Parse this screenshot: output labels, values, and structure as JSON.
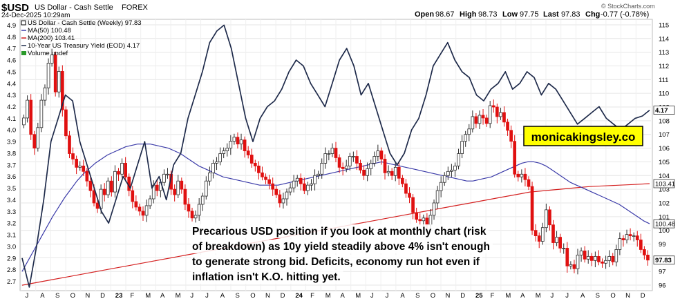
{
  "header": {
    "symbol": "$USD",
    "name": "US Dollar - Cash Settle",
    "exchange": "FOREX",
    "date": "24-Dec-2025 10:29am",
    "open_label": "Open",
    "open": "98.67",
    "high_label": "High",
    "high": "98.73",
    "low_label": "Low",
    "low": "97.75",
    "last_label": "Last",
    "last": "97.83",
    "chg_label": "Chg",
    "chg": "-0.77 (-0.78%)",
    "copyright": "© StockCharts.com"
  },
  "legend": [
    {
      "text": "US Dollar - Cash Settle (Weekly) 97.83",
      "color": "#000000"
    },
    {
      "text": "MA(50) 100.48",
      "color": "#3a3aa8"
    },
    {
      "text": "MA(200) 103.41",
      "color": "#d42020"
    },
    {
      "text": "10-Year US Treasury Yield (EOD) 4.17",
      "color": "#1e2a4a"
    },
    {
      "text": "Volume undef",
      "color": "#2a9a2a"
    }
  ],
  "watermark": "monicakingsley.co",
  "annotation": "Precarious USD position if you look at monthly chart (risk of breakdown) as 10y yield steadily above 4% isn't enough to generate strong bid. Deficits, economy run hot even if inflation isn't K.O. hitting yet.",
  "colors": {
    "up": "#2a2a2a",
    "down": "#e01010",
    "ma50": "#3a3aa8",
    "ma200": "#d42020",
    "yield": "#1e2a4a",
    "box_bg": "#ffff00"
  },
  "chart_data": {
    "type": "line",
    "x_labels": [
      "J",
      "A",
      "S",
      "O",
      "N",
      "D",
      "23",
      "F",
      "M",
      "A",
      "M",
      "J",
      "J",
      "A",
      "S",
      "O",
      "N",
      "D",
      "24",
      "F",
      "M",
      "A",
      "M",
      "J",
      "J",
      "A",
      "S",
      "O",
      "N",
      "D",
      "25",
      "F",
      "M",
      "A",
      "M",
      "J",
      "J",
      "A",
      "S",
      "O",
      "N",
      "D"
    ],
    "left_axis": {
      "ticks": [
        "2.7",
        "2.8",
        "2.9",
        "3.0",
        "3.1",
        "3.2",
        "3.3",
        "3.4",
        "3.5",
        "3.6",
        "3.7",
        "3.8",
        "3.9",
        "4.0",
        "4.1",
        "4.2",
        "4.3",
        "4.4",
        "4.5",
        "4.6",
        "4.7",
        "4.8",
        "4.9"
      ],
      "ylim": [
        2.62,
        4.95
      ]
    },
    "right_axis": {
      "ticks": [
        "96",
        "97",
        "98",
        "99",
        "100",
        "101",
        "102",
        "103",
        "104",
        "105",
        "106",
        "107",
        "108",
        "109",
        "110",
        "111",
        "112",
        "113",
        "114",
        "115"
      ],
      "ylim": [
        95.6,
        115.4
      ]
    },
    "tags": {
      "yield": "4.17",
      "ma200": "103.41",
      "ma50": "100.48",
      "last": "97.83"
    },
    "usd_close": [
      108.2,
      109.5,
      107.0,
      106.0,
      107.5,
      109.5,
      110.4,
      112.2,
      112.8,
      110.1,
      111.6,
      108.8,
      106.9,
      105.6,
      105.2,
      104.6,
      104.7,
      104.3,
      103.6,
      102.9,
      102.0,
      101.6,
      103.0,
      102.6,
      103.6,
      102.8,
      104.3,
      104.1,
      104.9,
      103.9,
      102.9,
      102.1,
      101.7,
      101.4,
      101.1,
      101.8,
      102.3,
      103.3,
      102.9,
      103.5,
      104.1,
      104.1,
      103.0,
      102.6,
      103.6,
      103.0,
      101.9,
      101.4,
      100.9,
      101.1,
      101.9,
      102.5,
      103.6,
      104.2,
      104.9,
      105.0,
      105.6,
      105.8,
      106.0,
      106.5,
      106.8,
      106.3,
      106.6,
      105.8,
      105.5,
      104.9,
      104.7,
      104.2,
      103.9,
      103.7,
      103.4,
      103.0,
      102.6,
      102.0,
      102.3,
      102.8,
      103.1,
      103.6,
      103.8,
      103.4,
      102.9,
      103.3,
      103.4,
      104.0,
      104.1,
      104.9,
      105.6,
      105.6,
      106.0,
      105.3,
      104.6,
      104.5,
      104.7,
      105.4,
      105.4,
      104.9,
      104.4,
      104.0,
      104.5,
      104.9,
      105.4,
      105.8,
      105.2,
      104.2,
      104.3,
      104.0,
      104.6,
      103.8,
      103.4,
      102.7,
      102.4,
      101.3,
      100.8,
      100.7,
      100.9,
      100.4,
      101.1,
      102.0,
      102.9,
      103.5,
      104.0,
      104.3,
      104.4,
      104.7,
      105.6,
      106.5,
      107.0,
      107.4,
      108.3,
      107.8,
      108.4,
      108.2,
      107.8,
      109.1,
      109.0,
      108.3,
      108.6,
      107.9,
      107.3,
      106.5,
      104.1,
      103.9,
      104.1,
      103.7,
      103.2,
      100.0,
      99.6,
      99.2,
      100.2,
      101.5,
      100.4,
      99.1,
      99.5,
      98.7,
      98.7,
      97.4,
      97.5,
      97.2,
      98.2,
      98.5,
      97.9,
      98.1,
      97.8,
      98.1,
      97.7,
      97.6,
      97.8,
      98.1,
      97.7,
      98.6,
      99.4,
      99.3,
      99.7,
      99.6,
      99.6,
      99.3,
      98.6,
      98.2,
      97.83
    ],
    "ma50": [
      97.0,
      97.8,
      98.6,
      99.4,
      100.2,
      101.0,
      101.7,
      102.4,
      103.0,
      103.6,
      104.1,
      104.5,
      104.9,
      105.2,
      105.5,
      105.7,
      105.9,
      106.1,
      106.2,
      106.3,
      106.3,
      106.3,
      106.2,
      106.1,
      106.0,
      105.8,
      105.6,
      105.3,
      105.0,
      104.7,
      104.5,
      104.3,
      104.1,
      103.9,
      103.8,
      103.7,
      103.6,
      103.5,
      103.4,
      103.3,
      103.3,
      103.3,
      103.3,
      103.4,
      103.5,
      103.6,
      103.7,
      103.8,
      103.9,
      104.0,
      104.1,
      104.2,
      104.3,
      104.4,
      104.5,
      104.6,
      104.7,
      104.8,
      104.9,
      105.0,
      104.9,
      104.8,
      104.7,
      104.6,
      104.5,
      104.4,
      104.3,
      104.2,
      104.1,
      104.0,
      103.9,
      103.8,
      103.7,
      103.6,
      103.6,
      103.7,
      103.8,
      103.9,
      104.1,
      104.3,
      104.5,
      104.7,
      104.9,
      105.0,
      105.0,
      104.9,
      104.7,
      104.4,
      104.1,
      103.8,
      103.5,
      103.3,
      103.1,
      102.9,
      102.7,
      102.5,
      102.3,
      102.1,
      101.9,
      101.6,
      101.3,
      101.0,
      100.7,
      100.48
    ],
    "ma200": [
      96.0,
      96.2,
      96.4,
      96.6,
      96.8,
      97.0,
      97.2,
      97.4,
      97.6,
      97.8,
      98.0,
      98.2,
      98.4,
      98.6,
      98.8,
      99.0,
      99.2,
      99.4,
      99.6,
      99.8,
      100.0,
      100.2,
      100.4,
      100.6,
      100.8,
      101.0,
      101.2,
      101.4,
      101.6,
      101.8,
      102.0,
      102.2,
      102.4,
      102.6,
      102.8,
      102.9,
      103.0,
      103.1,
      103.2,
      103.25,
      103.3,
      103.35,
      103.41
    ],
    "yield_10y": [
      2.9,
      2.65,
      3.0,
      3.4,
      3.9,
      4.1,
      4.3,
      4.25,
      3.9,
      3.7,
      3.5,
      3.3,
      3.2,
      3.4,
      3.6,
      3.5,
      3.7,
      3.9,
      3.5,
      3.6,
      3.4,
      3.7,
      3.8,
      4.1,
      4.3,
      4.5,
      4.75,
      4.85,
      4.9,
      4.7,
      4.4,
      4.1,
      3.9,
      4.1,
      4.2,
      4.25,
      4.35,
      4.5,
      4.6,
      4.55,
      4.4,
      4.3,
      4.2,
      4.4,
      4.6,
      4.7,
      4.55,
      4.3,
      4.4,
      4.2,
      4.0,
      3.8,
      3.7,
      3.8,
      4.0,
      4.1,
      4.3,
      4.55,
      4.65,
      4.75,
      4.6,
      4.5,
      4.45,
      4.3,
      4.25,
      4.35,
      4.4,
      4.5,
      4.35,
      4.4,
      4.5,
      4.45,
      4.3,
      4.4,
      4.35,
      4.25,
      4.15,
      4.05,
      4.1,
      4.15,
      4.2,
      4.1,
      4.05,
      4.0,
      4.05,
      4.1,
      4.12,
      4.17
    ]
  }
}
